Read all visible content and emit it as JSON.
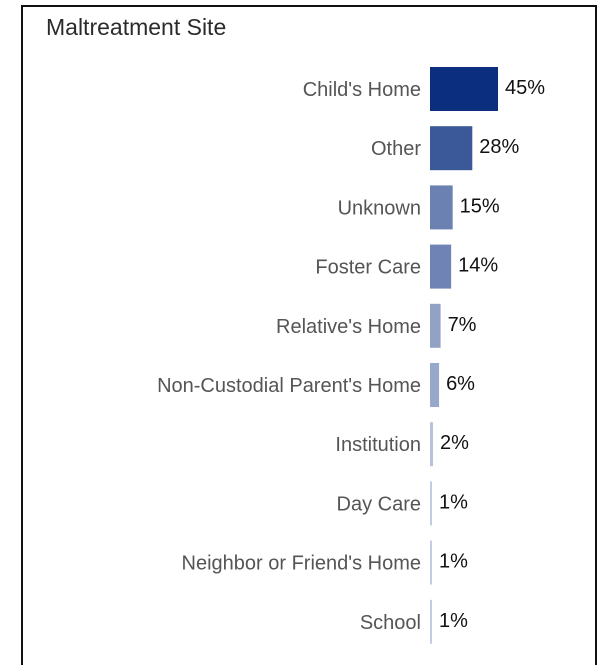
{
  "chart_data": {
    "type": "bar",
    "orientation": "horizontal",
    "title": "Maltreatment Site",
    "categories": [
      "Child's Home",
      "Other",
      "Unknown",
      "Foster Care",
      "Relative's Home",
      "Non-Custodial Parent's Home",
      "Institution",
      "Day Care",
      "Neighbor or Friend's Home",
      "School"
    ],
    "values": [
      45,
      28,
      15,
      14,
      7,
      6,
      2,
      1,
      1,
      1
    ],
    "value_labels": [
      "45%",
      "28%",
      "15%",
      "14%",
      "7%",
      "6%",
      "2%",
      "1%",
      "1%",
      "1%"
    ],
    "xlim": [
      0,
      45
    ],
    "grid": false,
    "legend": "none",
    "colors": {
      "max": "#0b2f7e",
      "min": "#dde3f0"
    }
  }
}
